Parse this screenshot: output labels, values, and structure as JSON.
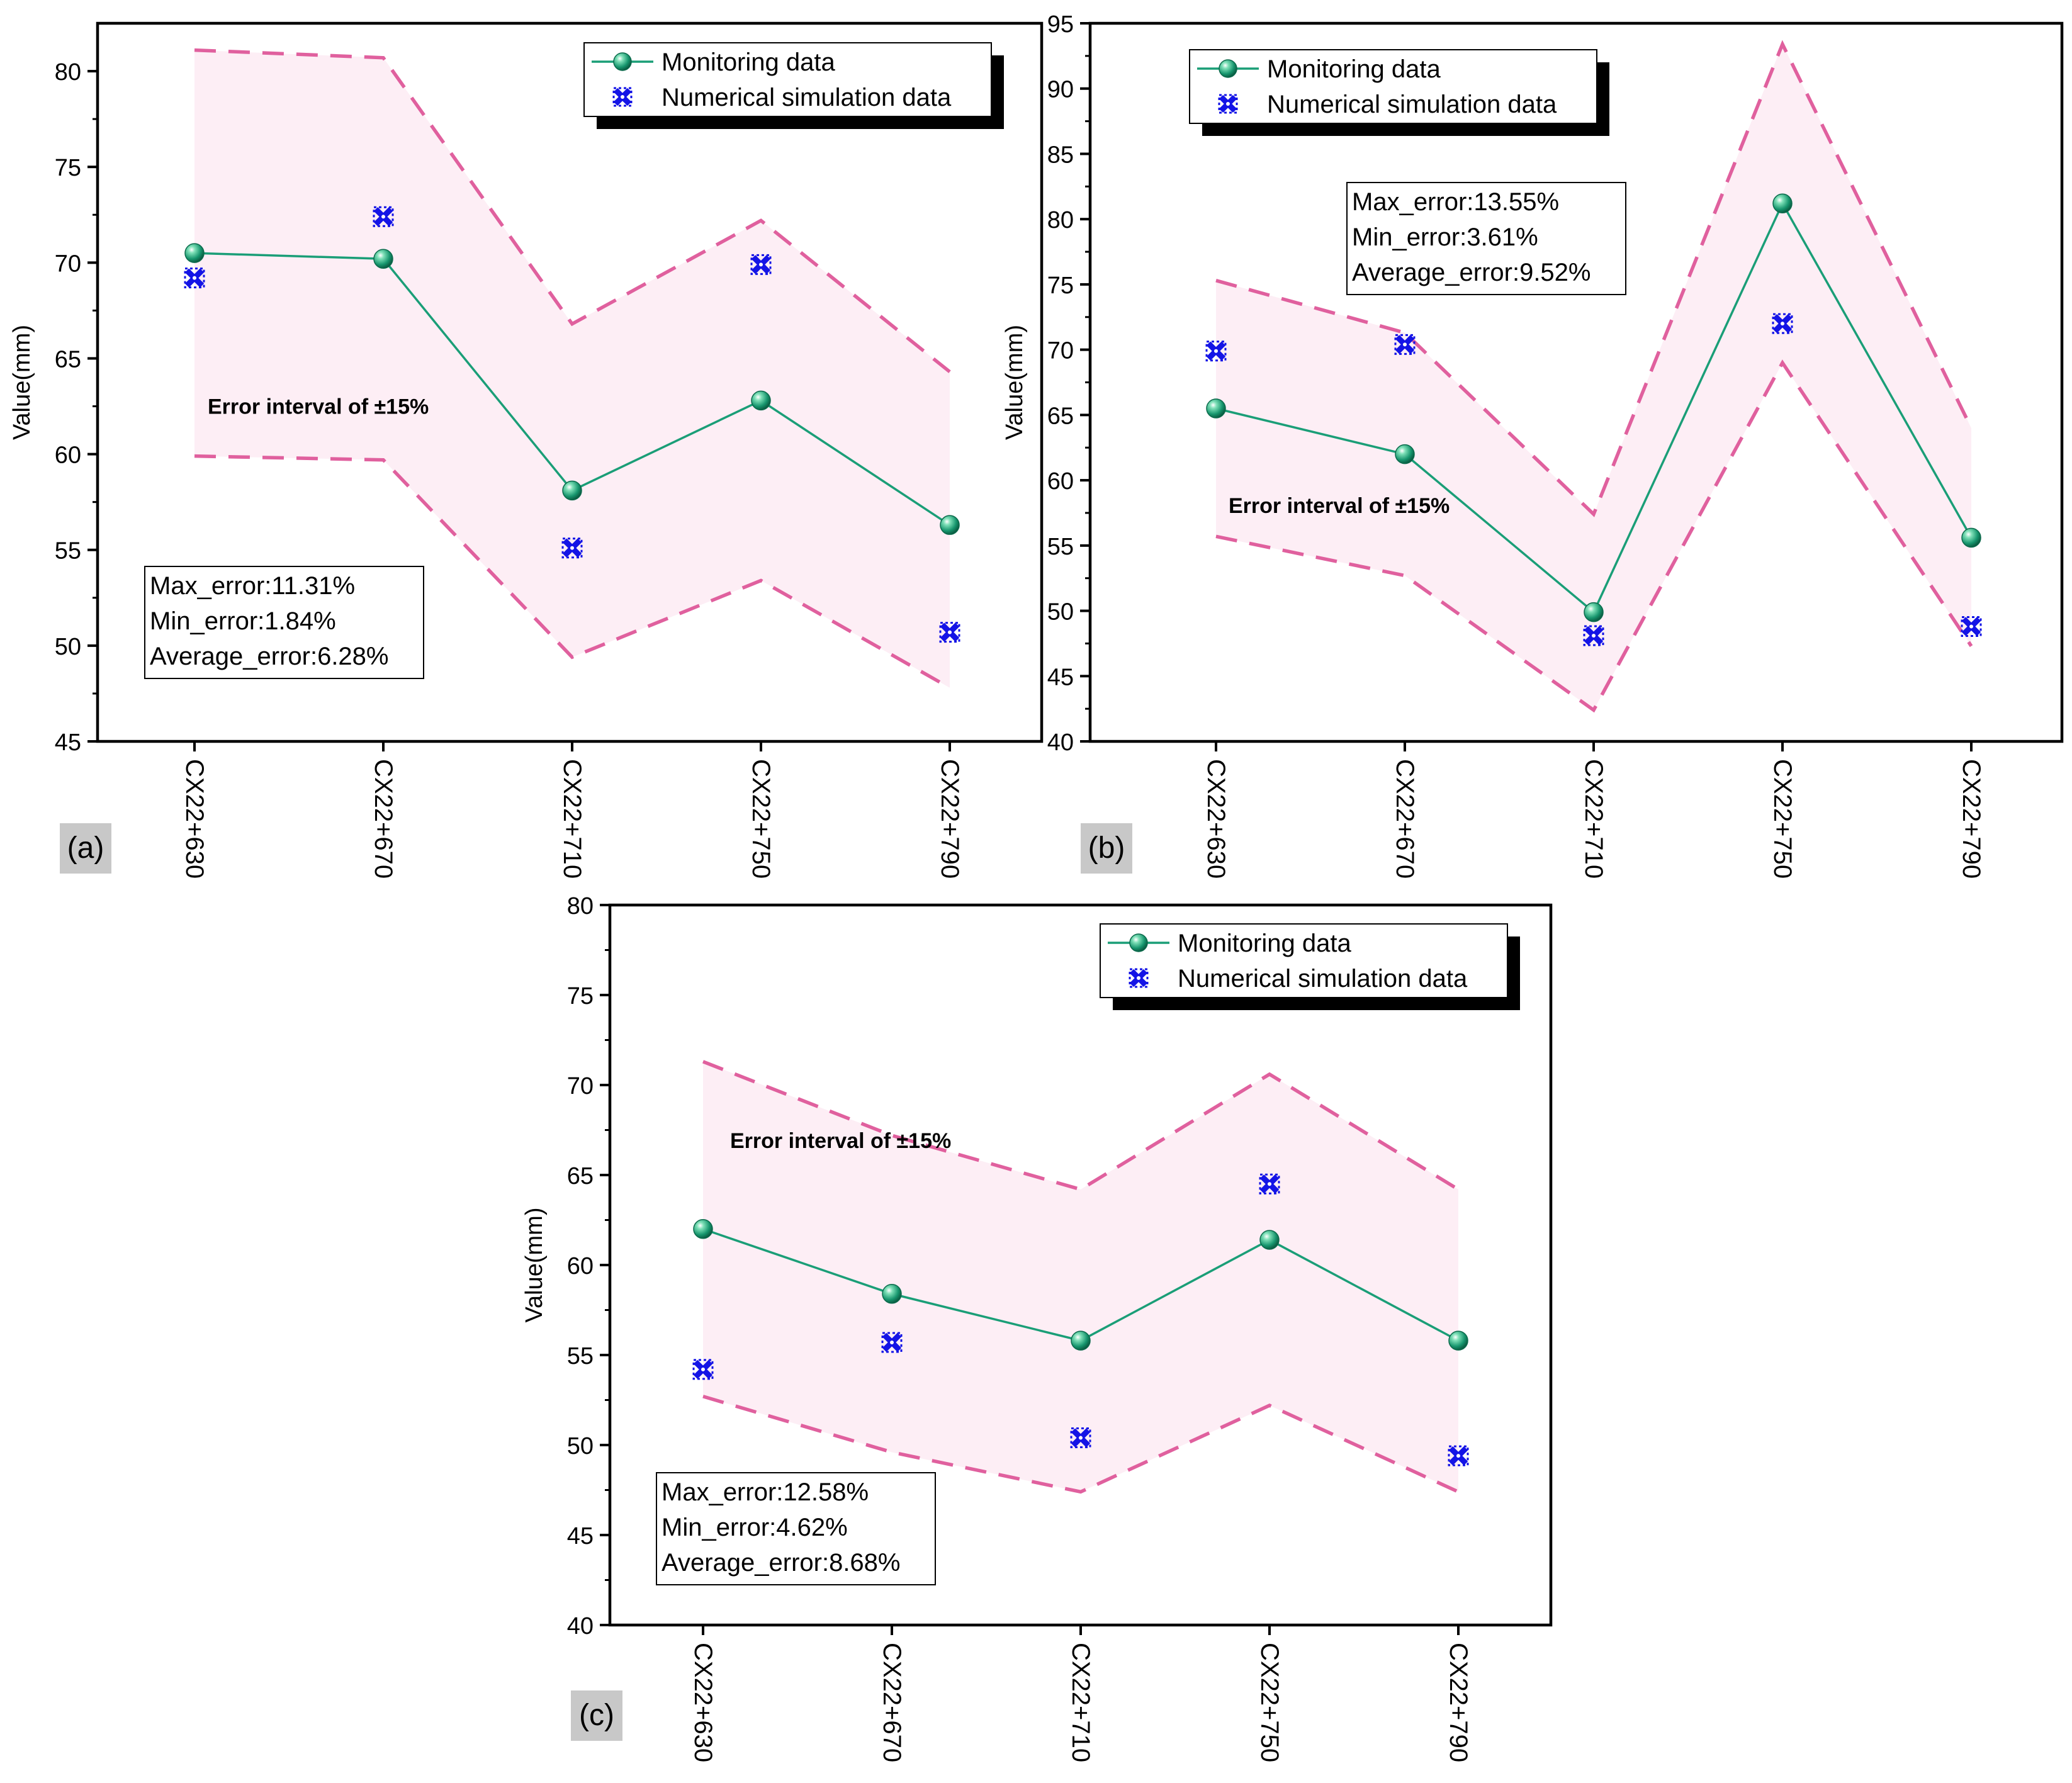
{
  "chart_data": [
    {
      "type": "line",
      "panel_label": "(a)",
      "categories": [
        "CX22+630",
        "CX22+670",
        "CX22+710",
        "CX22+750",
        "CX22+790"
      ],
      "ylabel": "Value(mm)",
      "ylim": [
        45,
        82.5
      ],
      "yticks": [
        45,
        50,
        55,
        60,
        65,
        70,
        75,
        80
      ],
      "series": [
        {
          "name": "Monitoring data",
          "marker": "sphere",
          "line": true,
          "values": [
            70.5,
            70.2,
            58.1,
            62.8,
            56.3
          ]
        },
        {
          "name": "Numerical simulation data",
          "marker": "cross",
          "line": false,
          "values": [
            69.2,
            72.4,
            55.1,
            69.9,
            50.7
          ]
        }
      ],
      "band": {
        "label": "Error interval of ±15%",
        "upper": [
          81.1,
          80.7,
          66.8,
          72.2,
          64.3
        ],
        "lower": [
          59.9,
          59.7,
          49.4,
          53.4,
          47.8
        ]
      },
      "legend_position": "top-right",
      "stats": [
        "Max_error:11.31%",
        "Min_error:1.84%",
        "Average_error:6.28%"
      ]
    },
    {
      "type": "line",
      "panel_label": "(b)",
      "categories": [
        "CX22+630",
        "CX22+670",
        "CX22+710",
        "CX22+750",
        "CX22+790"
      ],
      "ylabel": "Value(mm)",
      "ylim": [
        40,
        95
      ],
      "yticks": [
        40,
        45,
        50,
        55,
        60,
        65,
        70,
        75,
        80,
        85,
        90,
        95
      ],
      "series": [
        {
          "name": "Monitoring data",
          "marker": "sphere",
          "line": true,
          "values": [
            65.5,
            62.0,
            49.9,
            81.2,
            55.6
          ]
        },
        {
          "name": "Numerical simulation data",
          "marker": "cross",
          "line": false,
          "values": [
            69.9,
            70.4,
            48.1,
            72.0,
            48.8
          ]
        }
      ],
      "band": {
        "label": "Error interval of ±15%",
        "upper": [
          75.3,
          71.3,
          57.4,
          93.4,
          64.0
        ],
        "lower": [
          55.7,
          52.7,
          42.4,
          69.0,
          47.3
        ]
      },
      "legend_position": "top-left",
      "stats": [
        "Max_error:13.55%",
        "Min_error:3.61%",
        "Average_error:9.52%"
      ]
    },
    {
      "type": "line",
      "panel_label": "(c)",
      "categories": [
        "CX22+630",
        "CX22+670",
        "CX22+710",
        "CX22+750",
        "CX22+790"
      ],
      "ylabel": "Value(mm)",
      "ylim": [
        40,
        80
      ],
      "yticks": [
        40,
        45,
        50,
        55,
        60,
        65,
        70,
        75,
        80
      ],
      "series": [
        {
          "name": "Monitoring data",
          "marker": "sphere",
          "line": true,
          "values": [
            62.0,
            58.4,
            55.8,
            61.4,
            55.8
          ]
        },
        {
          "name": "Numerical simulation data",
          "marker": "cross",
          "line": false,
          "values": [
            54.2,
            55.7,
            50.4,
            64.5,
            49.4
          ]
        }
      ],
      "band": {
        "label": "Error interval of ±15%",
        "upper": [
          71.3,
          67.2,
          64.2,
          70.6,
          64.2
        ],
        "lower": [
          52.7,
          49.6,
          47.4,
          52.2,
          47.4
        ]
      },
      "legend_position": "top-right",
      "stats": [
        "Max_error:12.58%",
        "Min_error:4.62%",
        "Average_error:8.68%"
      ]
    }
  ],
  "colors": {
    "monitoring": "#1a9e77",
    "simulation": "#1414e6",
    "band_fill": "#fdeef5",
    "band_line": "#e0609e",
    "axis": "#000000",
    "panel_label_bg": "#c8c8c8"
  }
}
